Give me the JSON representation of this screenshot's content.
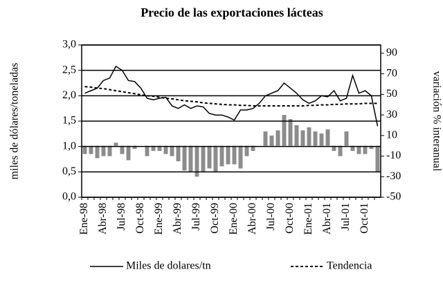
{
  "chart_data": {
    "type": "bar-line",
    "title": "Precio de las exportaciones lácteas",
    "ylabel": "miles de dólares/toneladas",
    "y2label": "variación % interanual",
    "categories": [
      "Ene-98",
      null,
      null,
      "Abr-98",
      null,
      null,
      "Jul-98",
      null,
      null,
      "Oct-98",
      null,
      null,
      "Ene-99",
      null,
      null,
      "Abr-99",
      null,
      null,
      "Jul-99",
      null,
      null,
      "Oct-99",
      null,
      null,
      "Ene-00",
      null,
      null,
      "Abr-00",
      null,
      null,
      "Jul-00",
      null,
      null,
      "Oct-00",
      null,
      null,
      "Ene-01",
      null,
      null,
      "Abr-01",
      null,
      null,
      "Jul-01",
      null,
      null,
      "Oct-01",
      null,
      null
    ],
    "series": [
      {
        "name": "Miles de dolares/tn",
        "kind": "line",
        "color": "#000000",
        "dash": false,
        "values": [
          2.05,
          2.1,
          2.15,
          2.3,
          2.35,
          2.58,
          2.5,
          2.3,
          2.28,
          2.15,
          1.95,
          1.92,
          1.95,
          1.97,
          1.8,
          1.75,
          1.82,
          1.75,
          1.8,
          1.78,
          1.65,
          1.62,
          1.62,
          1.58,
          1.52,
          1.72,
          1.72,
          1.75,
          1.85,
          2.0,
          2.05,
          2.1,
          2.25,
          2.15,
          2.05,
          1.92,
          1.85,
          1.9,
          2.0,
          1.98,
          2.1,
          1.9,
          1.95,
          2.4,
          2.05,
          2.1,
          2.0,
          1.4
        ]
      },
      {
        "name": "Tendencia",
        "kind": "line",
        "color": "#000000",
        "dash": true,
        "values": [
          2.18,
          2.17,
          2.15,
          2.14,
          2.12,
          2.1,
          2.08,
          2.06,
          2.04,
          2.02,
          2.0,
          1.99,
          1.97,
          1.95,
          1.94,
          1.92,
          1.9,
          1.89,
          1.88,
          1.86,
          1.85,
          1.84,
          1.83,
          1.82,
          1.82,
          1.81,
          1.81,
          1.8,
          1.8,
          1.8,
          1.8,
          1.8,
          1.8,
          1.8,
          1.8,
          1.8,
          1.81,
          1.81,
          1.82,
          1.82,
          1.83,
          1.83,
          1.84,
          1.84,
          1.84,
          1.85,
          1.85,
          1.85
        ]
      },
      {
        "kind": "bar",
        "axis": "y2",
        "color": "#8c8c8c",
        "values": [
          -8,
          -8,
          -12,
          -10,
          -10,
          3,
          -8,
          -14,
          -3,
          0,
          -10,
          -5,
          -5,
          -8,
          -10,
          -15,
          -24,
          -25,
          -30,
          -25,
          -22,
          -25,
          -20,
          -18,
          -18,
          -22,
          -10,
          -5,
          0,
          14,
          10,
          15,
          30,
          26,
          20,
          15,
          18,
          14,
          12,
          16,
          -5,
          -10,
          14,
          -5,
          -8,
          -8,
          -3,
          -25
        ]
      }
    ],
    "ylim": [
      0,
      3
    ],
    "yticks": [
      {
        "value": 0,
        "label": "0,0"
      },
      {
        "value": 0.5,
        "label": "0,5"
      },
      {
        "value": 1,
        "label": "1,0"
      },
      {
        "value": 1.5,
        "label": "1,5"
      },
      {
        "value": 2,
        "label": "2,0"
      },
      {
        "value": 2.5,
        "label": "2,5"
      },
      {
        "value": 3,
        "label": "3,0"
      }
    ],
    "y2lim": [
      -50,
      98
    ],
    "y2ticks": [
      -50,
      -30,
      -10,
      10,
      30,
      50,
      70,
      90
    ],
    "grid": true
  }
}
